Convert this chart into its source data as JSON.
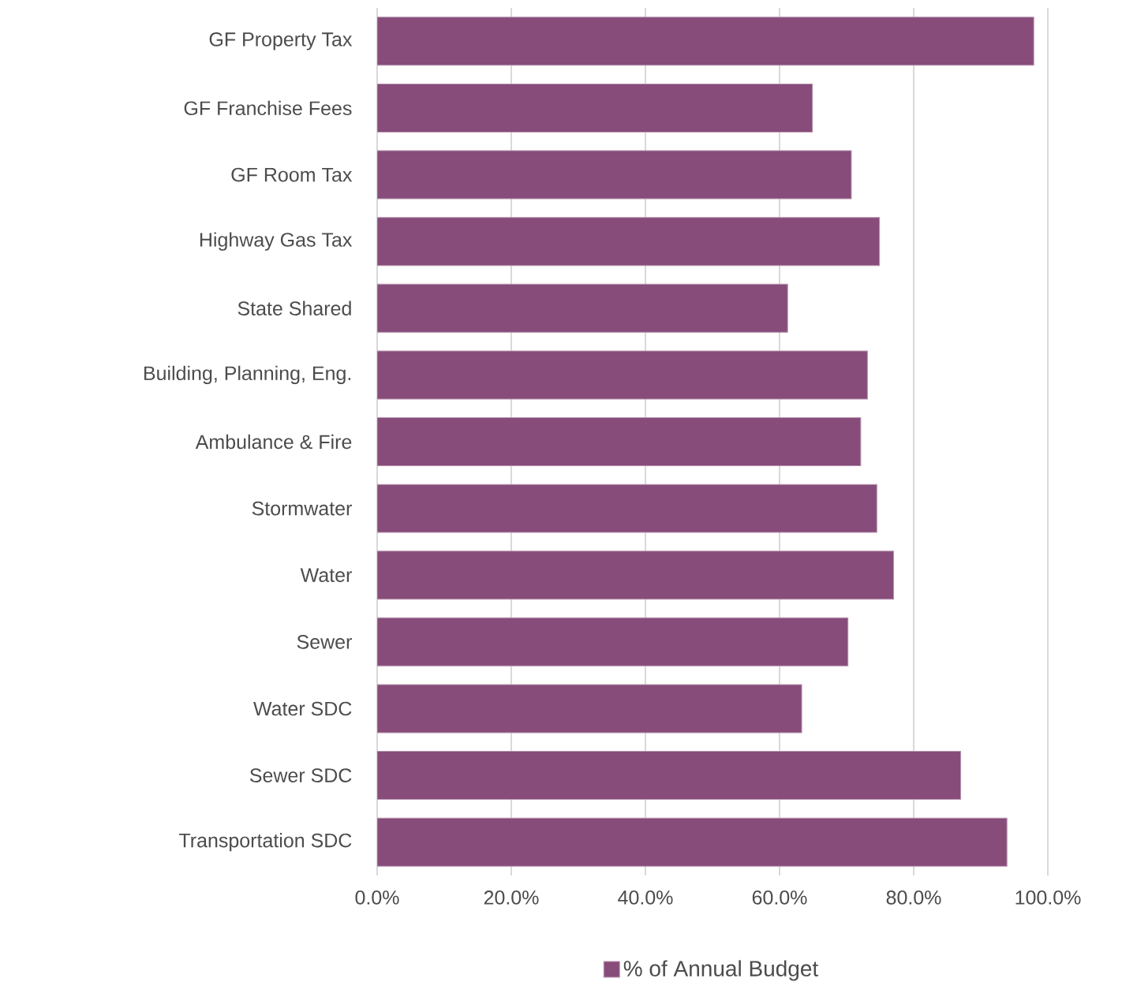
{
  "chart_data": {
    "type": "bar",
    "orientation": "horizontal",
    "categories": [
      "GF Property Tax",
      "GF Franchise Fees",
      "GF Room Tax",
      "Highway Gas Tax",
      "State Shared",
      "Building, Planning, Eng.",
      "Ambulance & Fire",
      "Stormwater",
      "Water",
      "Sewer",
      "Water SDC",
      "Sewer SDC",
      "Transportation SDC"
    ],
    "series": [
      {
        "name": "% of Annual Budget",
        "color": "#874c7a",
        "values": [
          97.9,
          64.9,
          70.7,
          74.9,
          61.2,
          73.1,
          72.1,
          74.5,
          77.0,
          70.2,
          63.3,
          87.0,
          93.9
        ]
      }
    ],
    "xlim": [
      0,
      100
    ],
    "xticks": [
      {
        "value": 0,
        "label": "0.0%"
      },
      {
        "value": 20,
        "label": "20.0%"
      },
      {
        "value": 40,
        "label": "40.0%"
      },
      {
        "value": 60,
        "label": "60.0%"
      },
      {
        "value": 80,
        "label": "80.0%"
      },
      {
        "value": 100,
        "label": "100.0%"
      }
    ],
    "grid": "x",
    "legend": "bottom"
  }
}
